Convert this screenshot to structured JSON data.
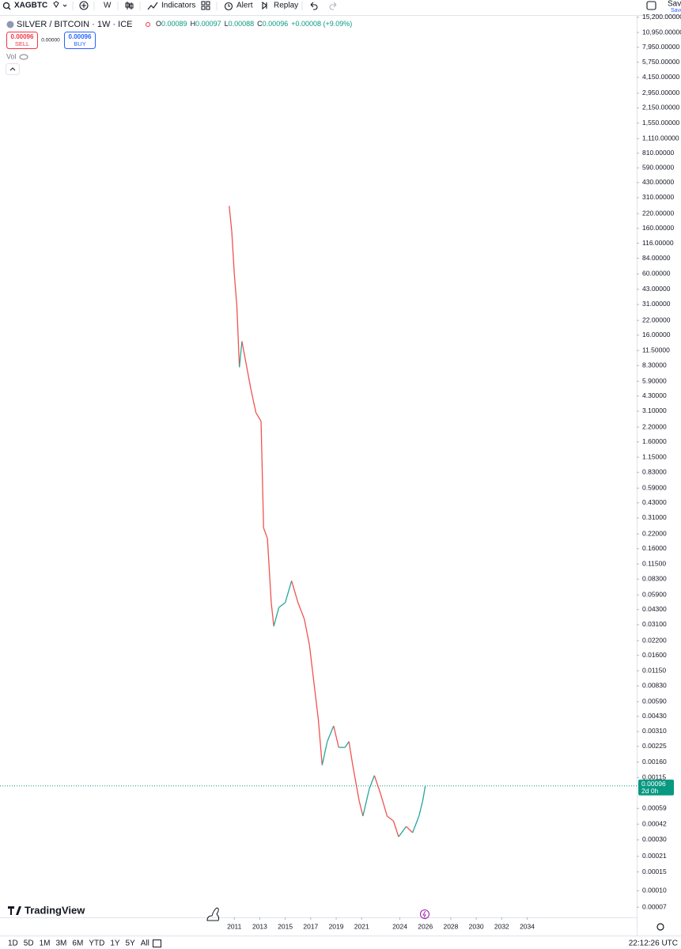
{
  "header": {
    "symbol": "XAGBTC",
    "interval": "W",
    "indicators": "Indicators",
    "alert": "Alert",
    "replay": "Replay",
    "save": "Save"
  },
  "legend": {
    "title": "SILVER / BITCOIN · 1W · ICE",
    "ohlc": [
      {
        "label": "O",
        "value": "0.00089"
      },
      {
        "label": "H",
        "value": "0.00097"
      },
      {
        "label": "L",
        "value": "0.00088"
      },
      {
        "label": "C",
        "value": "0.00096"
      }
    ],
    "change": "+0.00008 (+9.09%)",
    "sell_price": "0.00096",
    "sell": "SELL",
    "spread": "0.00000",
    "buy_price": "0.00096",
    "buy": "BUY",
    "volume": "Vol"
  },
  "chart_data": {
    "type": "line",
    "log_scale": true,
    "up_color": "#26a69a",
    "down_color": "#ef5350",
    "x": [
      2010.6,
      2010.8,
      2011.0,
      2011.2,
      2011.4,
      2011.6,
      2011.9,
      2012.3,
      2012.7,
      2013.1,
      2013.3,
      2013.6,
      2013.9,
      2014.1,
      2014.5,
      2015.0,
      2015.5,
      2016.0,
      2016.5,
      2016.9,
      2017.3,
      2017.6,
      2017.9,
      2018.3,
      2018.8,
      2019.2,
      2019.7,
      2020.0,
      2020.3,
      2020.8,
      2021.1,
      2021.6,
      2022.0,
      2022.5,
      2023.0,
      2023.5,
      2023.9,
      2024.5,
      2025.0,
      2025.5,
      2025.8,
      2026.0
    ],
    "values": [
      260,
      150,
      60,
      30,
      8,
      14,
      9,
      5,
      3,
      2.5,
      0.25,
      0.2,
      0.05,
      0.03,
      0.045,
      0.05,
      0.08,
      0.05,
      0.035,
      0.02,
      0.008,
      0.004,
      0.0015,
      0.0025,
      0.0035,
      0.0022,
      0.0022,
      0.0025,
      0.0015,
      0.0007,
      0.0005,
      0.0009,
      0.0012,
      0.0008,
      0.0005,
      0.00045,
      0.00032,
      0.0004,
      0.00035,
      0.0005,
      0.0007,
      0.00096
    ],
    "last_price": 0.00096,
    "countdown": "2d 0h",
    "last_price_color": "#089981",
    "xlim": [
      1992.6,
      2042.6
    ],
    "xticks": [
      2011,
      2013,
      2015,
      2017,
      2019,
      2021,
      2024,
      2026,
      2028,
      2030,
      2032,
      2034
    ],
    "ylim": [
      5.63e-05,
      15668
    ],
    "yticks": [
      {
        "value": 15200,
        "label": "15,200.00000"
      },
      {
        "value": 10950,
        "label": "10,950.00000"
      },
      {
        "value": 7950,
        "label": "7,950.00000"
      },
      {
        "value": 5750,
        "label": "5,750.00000"
      },
      {
        "value": 4150,
        "label": "4,150.00000"
      },
      {
        "value": 2950,
        "label": "2,950.00000"
      },
      {
        "value": 2150,
        "label": "2,150.00000"
      },
      {
        "value": 1550,
        "label": "1,550.00000"
      },
      {
        "value": 1110,
        "label": "1,110.00000"
      },
      {
        "value": 810,
        "label": "810.00000"
      },
      {
        "value": 590,
        "label": "590.00000"
      },
      {
        "value": 430,
        "label": "430.00000"
      },
      {
        "value": 310,
        "label": "310.00000"
      },
      {
        "value": 220,
        "label": "220.00000"
      },
      {
        "value": 160,
        "label": "160.00000"
      },
      {
        "value": 116,
        "label": "116.00000"
      },
      {
        "value": 84,
        "label": "84.00000"
      },
      {
        "value": 60,
        "label": "60.00000"
      },
      {
        "value": 43,
        "label": "43.00000"
      },
      {
        "value": 31,
        "label": "31.00000"
      },
      {
        "value": 22,
        "label": "22.00000"
      },
      {
        "value": 16,
        "label": "16.00000"
      },
      {
        "value": 11.5,
        "label": "11.50000"
      },
      {
        "value": 8.3,
        "label": "8.30000"
      },
      {
        "value": 5.9,
        "label": "5.90000"
      },
      {
        "value": 4.3,
        "label": "4.30000"
      },
      {
        "value": 3.1,
        "label": "3.10000"
      },
      {
        "value": 2.2,
        "label": "2.20000"
      },
      {
        "value": 1.6,
        "label": "1.60000"
      },
      {
        "value": 1.15,
        "label": "1.15000"
      },
      {
        "value": 0.83,
        "label": "0.83000"
      },
      {
        "value": 0.59,
        "label": "0.59000"
      },
      {
        "value": 0.43,
        "label": "0.43000"
      },
      {
        "value": 0.31,
        "label": "0.31000"
      },
      {
        "value": 0.22,
        "label": "0.22000"
      },
      {
        "value": 0.16,
        "label": "0.16000"
      },
      {
        "value": 0.115,
        "label": "0.11500"
      },
      {
        "value": 0.083,
        "label": "0.08300"
      },
      {
        "value": 0.059,
        "label": "0.05900"
      },
      {
        "value": 0.043,
        "label": "0.04300"
      },
      {
        "value": 0.031,
        "label": "0.03100"
      },
      {
        "value": 0.022,
        "label": "0.02200"
      },
      {
        "value": 0.016,
        "label": "0.01600"
      },
      {
        "value": 0.0115,
        "label": "0.01150"
      },
      {
        "value": 0.0083,
        "label": "0.00830"
      },
      {
        "value": 0.0059,
        "label": "0.00590"
      },
      {
        "value": 0.0043,
        "label": "0.00430"
      },
      {
        "value": 0.0031,
        "label": "0.00310"
      },
      {
        "value": 0.00225,
        "label": "0.00225"
      },
      {
        "value": 0.0016,
        "label": "0.00160"
      },
      {
        "value": 0.00115,
        "label": "0.00115"
      },
      {
        "value": 0.00059,
        "label": "0.00059"
      },
      {
        "value": 0.00042,
        "label": "0.00042"
      },
      {
        "value": 0.0003,
        "label": "0.00030"
      },
      {
        "value": 0.00021,
        "label": "0.00021"
      },
      {
        "value": 0.00015,
        "label": "0.00015"
      },
      {
        "value": 0.0001,
        "label": "0.00010"
      },
      {
        "value": 7e-05,
        "label": "0.00007"
      }
    ]
  },
  "branding": "TradingView",
  "footer": {
    "ranges": [
      "1D",
      "5D",
      "1M",
      "3M",
      "6M",
      "YTD",
      "1Y",
      "5Y",
      "All"
    ],
    "clock": "22:12:26 UTC"
  }
}
